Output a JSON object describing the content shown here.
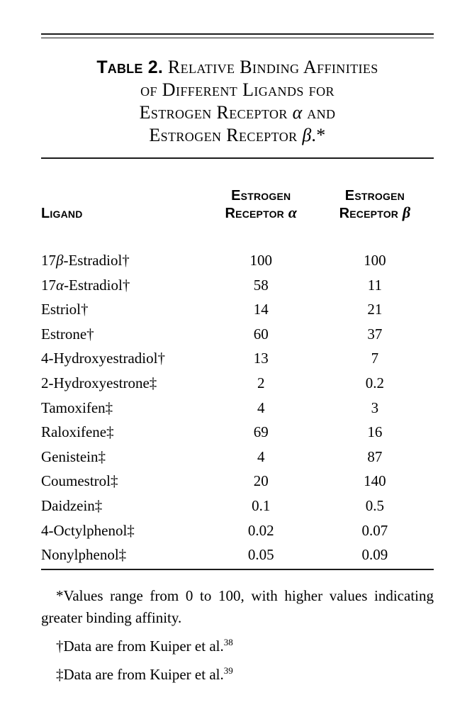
{
  "document": {
    "background_color": "#ffffff",
    "text_color": "#000000",
    "rule_color": "#1c1c1c"
  },
  "caption": {
    "label": "Table 2.",
    "lines": [
      {
        "pre": "Relative Binding Affinities",
        "greek": "",
        "post": ""
      },
      {
        "pre": "of Different Ligands for",
        "greek": "",
        "post": ""
      },
      {
        "pre": "Estrogen Receptor ",
        "greek": "α",
        "post": " and"
      },
      {
        "pre": "Estrogen Receptor ",
        "greek": "β",
        "post": ".*"
      }
    ]
  },
  "table": {
    "columns": {
      "ligand": {
        "label": "Ligand"
      },
      "er_alpha": {
        "line1": "Estrogen",
        "line2": "Receptor ",
        "greek": "α"
      },
      "er_beta": {
        "line1": "Estrogen",
        "line2": "Receptor ",
        "greek": "β"
      }
    },
    "rows": [
      {
        "ligand": "17β-Estradiol†",
        "alpha": "100",
        "beta": "100"
      },
      {
        "ligand": "17α-Estradiol†",
        "alpha": "58",
        "beta": "11"
      },
      {
        "ligand": "Estriol†",
        "alpha": "14",
        "beta": "21"
      },
      {
        "ligand": "Estrone†",
        "alpha": "60",
        "beta": "37"
      },
      {
        "ligand": "4-Hydroxyestradiol†",
        "alpha": "13",
        "beta": "7"
      },
      {
        "ligand": "2-Hydroxyestrone‡",
        "alpha": "2",
        "beta": "0.2"
      },
      {
        "ligand": "Tamoxifen‡",
        "alpha": "4",
        "beta": "3"
      },
      {
        "ligand": "Raloxifene‡",
        "alpha": "69",
        "beta": "16"
      },
      {
        "ligand": "Genistein‡",
        "alpha": "4",
        "beta": "87"
      },
      {
        "ligand": "Coumestrol‡",
        "alpha": "20",
        "beta": "140"
      },
      {
        "ligand": "Daidzein‡",
        "alpha": "0.1",
        "beta": "0.5"
      },
      {
        "ligand": "4-Octylphenol‡",
        "alpha": "0.02",
        "beta": "0.07"
      },
      {
        "ligand": "Nonylphenol‡",
        "alpha": "0.05",
        "beta": "0.09"
      }
    ]
  },
  "footnotes": [
    {
      "symbol": "*",
      "text": "Values range from 0 to 100, with higher values indicating greater binding affinity.",
      "sup": ""
    },
    {
      "symbol": "†",
      "text": "Data are from Kuiper et al.",
      "sup": "38"
    },
    {
      "symbol": "‡",
      "text": "Data are from Kuiper et al.",
      "sup": "39"
    }
  ]
}
